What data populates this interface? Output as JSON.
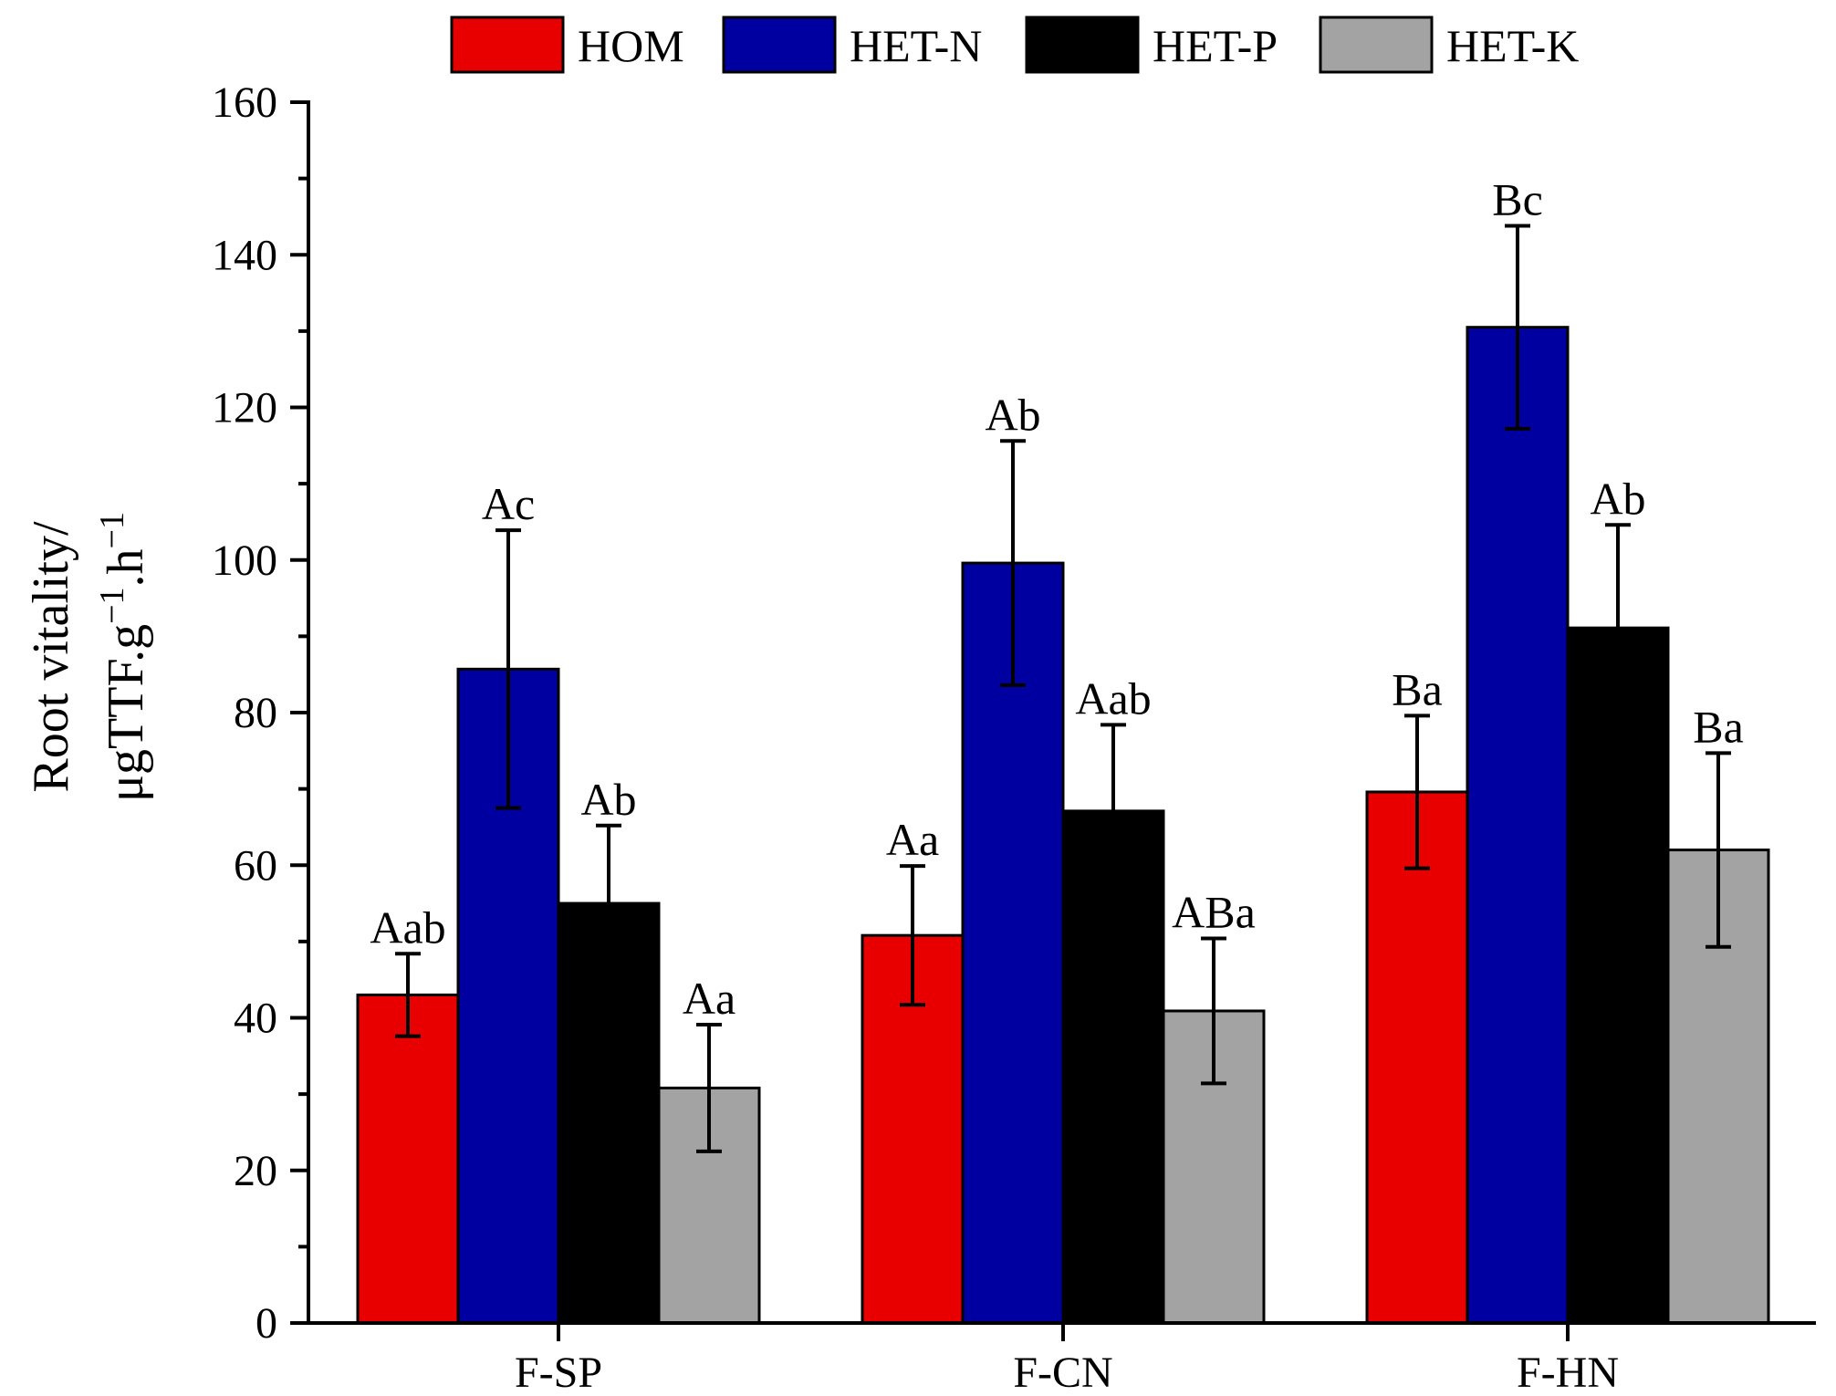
{
  "chart_data": {
    "type": "bar",
    "title": "",
    "xlabel": "",
    "ylabel_line1": "Root vitality/",
    "ylabel_line2_base": "μgTTF.g",
    "ylabel_exp1": "−1",
    "ylabel_mid": ".h",
    "ylabel_exp2": "−1",
    "ylim": [
      0,
      160
    ],
    "yticks": [
      0,
      20,
      40,
      60,
      80,
      100,
      120,
      140,
      160
    ],
    "categories": [
      "F-SP",
      "F-CN",
      "F-HN"
    ],
    "legend_position": "top",
    "series": [
      {
        "name": "HOM",
        "color": "#e80000",
        "values": [
          43,
          50.8,
          69.6
        ],
        "errors": [
          5.4,
          9.1,
          10
        ],
        "labels": [
          "Aab",
          "Aa",
          "Ba"
        ]
      },
      {
        "name": "HET-N",
        "color": "#0000a0",
        "values": [
          85.7,
          99.6,
          130.5
        ],
        "errors": [
          18.2,
          16,
          13.3
        ],
        "labels": [
          "Ac",
          "Ab",
          "Bc"
        ]
      },
      {
        "name": "HET-P",
        "color": "#000000",
        "values": [
          55,
          67.1,
          91.1
        ],
        "errors": [
          10.2,
          11.3,
          13.5
        ],
        "labels": [
          "Ab",
          "Aab",
          "Ab"
        ]
      },
      {
        "name": "HET-K",
        "color": "#a3a3a3",
        "values": [
          30.8,
          40.9,
          62
        ],
        "errors": [
          8.3,
          9.5,
          12.7
        ],
        "labels": [
          "Aa",
          "ABa",
          "Ba"
        ]
      }
    ]
  }
}
